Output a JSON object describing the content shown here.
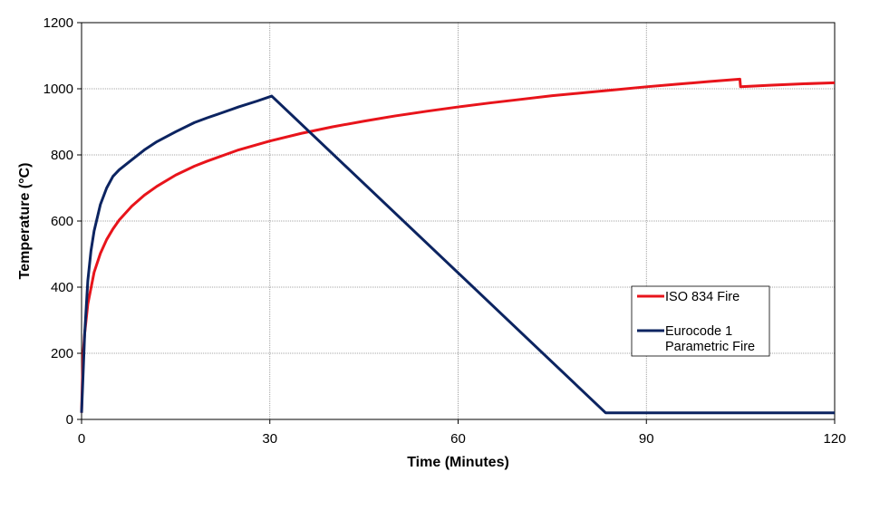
{
  "chart_data": {
    "type": "line",
    "title": "",
    "xlabel": "Time (Minutes)",
    "ylabel": "Temperature (°C)",
    "xlim": [
      0,
      120
    ],
    "ylim": [
      0,
      1200
    ],
    "x_ticks": [
      0,
      30,
      60,
      90,
      120
    ],
    "y_ticks": [
      0,
      200,
      400,
      600,
      800,
      1000,
      1200
    ],
    "grid": true,
    "legend_position": "right",
    "series": [
      {
        "name": "ISO 834 Fire",
        "color": "#e8141b",
        "points": [
          [
            0,
            20
          ],
          [
            0.1,
            98
          ],
          [
            0.25,
            198
          ],
          [
            0.5,
            261
          ],
          [
            1,
            349
          ],
          [
            2,
            445
          ],
          [
            3,
            502
          ],
          [
            4,
            544
          ],
          [
            5,
            576
          ],
          [
            6,
            603
          ],
          [
            8,
            645
          ],
          [
            10,
            678
          ],
          [
            12,
            705
          ],
          [
            15,
            739
          ],
          [
            18,
            766
          ],
          [
            20,
            781
          ],
          [
            25,
            815
          ],
          [
            30,
            842
          ],
          [
            35,
            865
          ],
          [
            40,
            885
          ],
          [
            45,
            902
          ],
          [
            50,
            918
          ],
          [
            55,
            932
          ],
          [
            60,
            945
          ],
          [
            65,
            957
          ],
          [
            70,
            968
          ],
          [
            75,
            979
          ],
          [
            80,
            988
          ],
          [
            85,
            997
          ],
          [
            90,
            1006
          ],
          [
            95,
            1014
          ],
          [
            100,
            1022
          ],
          [
            104.9,
            1029
          ],
          [
            105,
            1006
          ],
          [
            110,
            1011
          ],
          [
            115,
            1015
          ],
          [
            120,
            1018
          ]
        ]
      },
      {
        "name": "Eurocode 1 Parametric Fire",
        "color": "#0c2461",
        "points": [
          [
            0,
            20
          ],
          [
            0.5,
            260
          ],
          [
            1,
            420
          ],
          [
            1.5,
            510
          ],
          [
            2,
            570
          ],
          [
            3,
            650
          ],
          [
            4,
            700
          ],
          [
            5,
            735
          ],
          [
            6,
            755
          ],
          [
            8,
            785
          ],
          [
            10,
            815
          ],
          [
            12,
            840
          ],
          [
            15,
            870
          ],
          [
            18,
            898
          ],
          [
            20,
            912
          ],
          [
            22,
            925
          ],
          [
            25,
            945
          ],
          [
            28,
            963
          ],
          [
            30.3,
            978
          ],
          [
            83.5,
            20
          ],
          [
            120,
            20
          ]
        ]
      }
    ]
  }
}
